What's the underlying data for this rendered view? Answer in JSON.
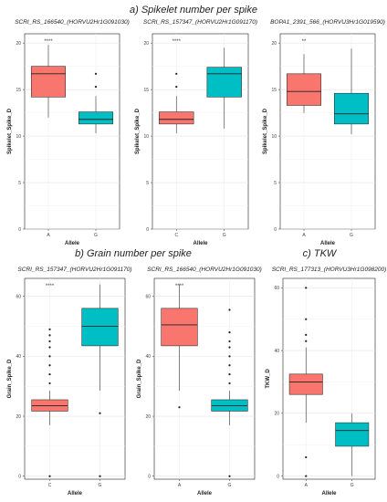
{
  "sections": [
    {
      "id": "a",
      "label": "a) Spikelet number per spike"
    },
    {
      "id": "b",
      "label": "b) Grain number per spike"
    },
    {
      "id": "c",
      "label": "c) TKW"
    }
  ],
  "colors": {
    "A": "#f8766d",
    "C": "#f8766d",
    "G": "#00bfc4"
  },
  "chart_data": [
    {
      "type": "box",
      "title": "SCRI_RS_166540_(HORVU2Hr1G091030)",
      "xlabel": "Allele",
      "ylabel": "Spikelet_Spike_D",
      "ylim": [
        0,
        21
      ],
      "yticks": [
        0,
        5,
        10,
        15,
        20
      ],
      "categories": [
        "A",
        "G"
      ],
      "significance": "****",
      "boxes": [
        {
          "category": "A",
          "min": 12,
          "q1": 14.2,
          "median": 16.7,
          "q3": 17.5,
          "max": 19.8,
          "outliers": []
        },
        {
          "category": "G",
          "min": 10.3,
          "q1": 11.3,
          "median": 11.8,
          "q3": 12.6,
          "max": 14.3,
          "outliers": [
            15.3,
            16.7
          ]
        }
      ]
    },
    {
      "type": "box",
      "title": "SCRI_RS_157347_(HORVU2Hr1G091170)",
      "xlabel": "Allele",
      "ylabel": "Spikelet_Spike_D",
      "ylim": [
        0,
        21
      ],
      "yticks": [
        0,
        5,
        10,
        15,
        20
      ],
      "categories": [
        "C",
        "G"
      ],
      "significance": "****",
      "boxes": [
        {
          "category": "C",
          "min": 10.3,
          "q1": 11.3,
          "median": 11.8,
          "q3": 12.6,
          "max": 14.3,
          "outliers": [
            15.3,
            16.7
          ]
        },
        {
          "category": "G",
          "min": 10.8,
          "q1": 14.2,
          "median": 16.7,
          "q3": 17.4,
          "max": 19.5,
          "outliers": []
        }
      ]
    },
    {
      "type": "box",
      "title": "BOPA1_2391_566_(HORVU3Hr1G019590)",
      "xlabel": "Allele",
      "ylabel": "Spikelet_Spike_D",
      "ylim": [
        0,
        21
      ],
      "yticks": [
        0,
        5,
        10,
        15,
        20
      ],
      "categories": [
        "A",
        "G"
      ],
      "significance": "**",
      "boxes": [
        {
          "category": "A",
          "min": 12.5,
          "q1": 13.3,
          "median": 14.8,
          "q3": 16.7,
          "max": 18.8,
          "outliers": []
        },
        {
          "category": "G",
          "min": 10.2,
          "q1": 11.3,
          "median": 12.4,
          "q3": 14.6,
          "max": 19.4,
          "outliers": []
        }
      ]
    },
    {
      "type": "box",
      "title": "SCRI_RS_157347_(HORVU2Hr1G091170)",
      "xlabel": "Allele",
      "ylabel": "Grain_Spike_D",
      "ylim": [
        -1,
        66
      ],
      "yticks": [
        0,
        20,
        40,
        60
      ],
      "categories": [
        "C",
        "G"
      ],
      "significance": "****",
      "boxes": [
        {
          "category": "C",
          "min": 17,
          "q1": 21.7,
          "median": 23.5,
          "q3": 25.5,
          "max": 28.5,
          "outliers": [
            0,
            31,
            34,
            37,
            40,
            43,
            45,
            47,
            49
          ]
        },
        {
          "category": "G",
          "min": 28.5,
          "q1": 43.5,
          "median": 50,
          "q3": 56,
          "max": 64,
          "outliers": [
            0,
            21
          ]
        }
      ]
    },
    {
      "type": "box",
      "title": "SCRI_RS_166540_(HORVU2Hr1G091030)",
      "xlabel": "Allele",
      "ylabel": "Grain_Spike_D",
      "ylim": [
        -1,
        66
      ],
      "yticks": [
        0,
        20,
        40,
        60
      ],
      "categories": [
        "A",
        "G"
      ],
      "significance": "****",
      "boxes": [
        {
          "category": "A",
          "min": 28.5,
          "q1": 43.5,
          "median": 50.5,
          "q3": 56,
          "max": 64,
          "outliers": [
            23
          ]
        },
        {
          "category": "G",
          "min": 17,
          "q1": 21.7,
          "median": 23.5,
          "q3": 25.5,
          "max": 28.5,
          "outliers": [
            0,
            31,
            34,
            37,
            40,
            43,
            45,
            48,
            55.5
          ]
        }
      ]
    },
    {
      "type": "box",
      "title": "SCRI_RS_177313_(HORVU3Hr1G098200)",
      "xlabel": "Allele",
      "ylabel": "TKW_D",
      "ylim": [
        -1,
        63
      ],
      "yticks": [
        0,
        20,
        40,
        60
      ],
      "categories": [
        "A",
        "G"
      ],
      "significance": "",
      "boxes": [
        {
          "category": "A",
          "min": 17,
          "q1": 26,
          "median": 30,
          "q3": 32.5,
          "max": 41,
          "outliers": [
            0,
            6,
            43,
            45,
            50,
            60
          ]
        },
        {
          "category": "G",
          "min": 0,
          "q1": 9.5,
          "median": 14.5,
          "q3": 17,
          "max": 20,
          "outliers": []
        }
      ]
    }
  ]
}
